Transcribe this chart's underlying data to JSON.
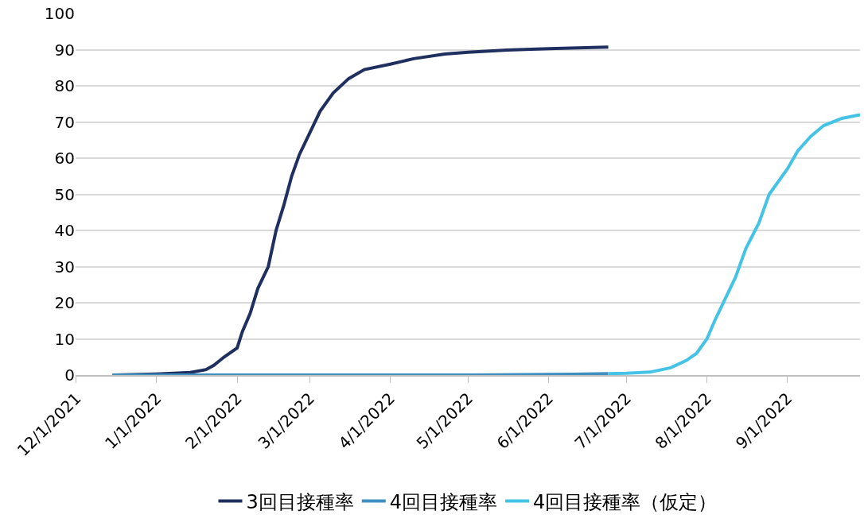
{
  "chart_data": {
    "type": "line",
    "xlim": [
      "2021-12-01",
      "2022-09-29"
    ],
    "xticks": [
      {
        "value": "2021-12-01",
        "label": "12/1/2021"
      },
      {
        "value": "2022-01-01",
        "label": "1/1/2022"
      },
      {
        "value": "2022-02-01",
        "label": "2/1/2022"
      },
      {
        "value": "2022-03-01",
        "label": "3/1/2022"
      },
      {
        "value": "2022-04-01",
        "label": "4/1/2022"
      },
      {
        "value": "2022-05-01",
        "label": "5/1/2022"
      },
      {
        "value": "2022-06-01",
        "label": "6/1/2022"
      },
      {
        "value": "2022-07-01",
        "label": "7/1/2022"
      },
      {
        "value": "2022-08-01",
        "label": "8/1/2022"
      },
      {
        "value": "2022-09-01",
        "label": "9/1/2022"
      }
    ],
    "ylim": [
      0,
      100
    ],
    "yticks": [
      0,
      10,
      20,
      30,
      40,
      50,
      60,
      70,
      80,
      90,
      100
    ],
    "grid": "y",
    "legend": "bottom",
    "marker": "none",
    "line_style": "solid",
    "series": [
      {
        "name": "3回目接種率",
        "color": "#1f3060",
        "x": [
          "2021-12-15",
          "2022-01-01",
          "2022-01-14",
          "2022-01-20",
          "2022-01-23",
          "2022-01-27",
          "2022-02-01",
          "2022-02-03",
          "2022-02-06",
          "2022-02-09",
          "2022-02-13",
          "2022-02-16",
          "2022-02-19",
          "2022-02-22",
          "2022-02-25",
          "2022-03-01",
          "2022-03-05",
          "2022-03-10",
          "2022-03-16",
          "2022-03-22",
          "2022-04-01",
          "2022-04-10",
          "2022-04-22",
          "2022-05-01",
          "2022-05-16",
          "2022-06-01",
          "2022-06-24"
        ],
        "values": [
          0,
          0.3,
          0.7,
          1.5,
          2.7,
          5,
          7.5,
          12,
          17,
          24,
          30,
          40,
          47,
          55,
          61,
          67,
          73,
          78,
          82,
          84.5,
          86,
          87.5,
          88.8,
          89.3,
          89.9,
          90.3,
          90.7
        ]
      },
      {
        "name": "4回目接種率",
        "color": "#3f8fc0",
        "x": [
          "2021-12-15",
          "2022-03-01",
          "2022-05-01",
          "2022-06-10",
          "2022-06-24"
        ],
        "values": [
          0,
          0,
          0,
          0.2,
          0.4
        ]
      },
      {
        "name": "4回目接種率（仮定）",
        "color": "#45c3e6",
        "x": [
          "2022-06-24",
          "2022-07-01",
          "2022-07-10",
          "2022-07-18",
          "2022-07-24",
          "2022-07-28",
          "2022-08-01",
          "2022-08-04",
          "2022-08-08",
          "2022-08-12",
          "2022-08-16",
          "2022-08-21",
          "2022-08-25",
          "2022-09-01",
          "2022-09-05",
          "2022-09-10",
          "2022-09-15",
          "2022-09-22",
          "2022-09-29"
        ],
        "values": [
          0.4,
          0.5,
          0.8,
          2,
          4,
          6,
          10,
          15,
          21,
          27,
          35,
          42,
          50,
          57,
          62,
          66,
          69,
          71,
          72
        ]
      }
    ]
  }
}
